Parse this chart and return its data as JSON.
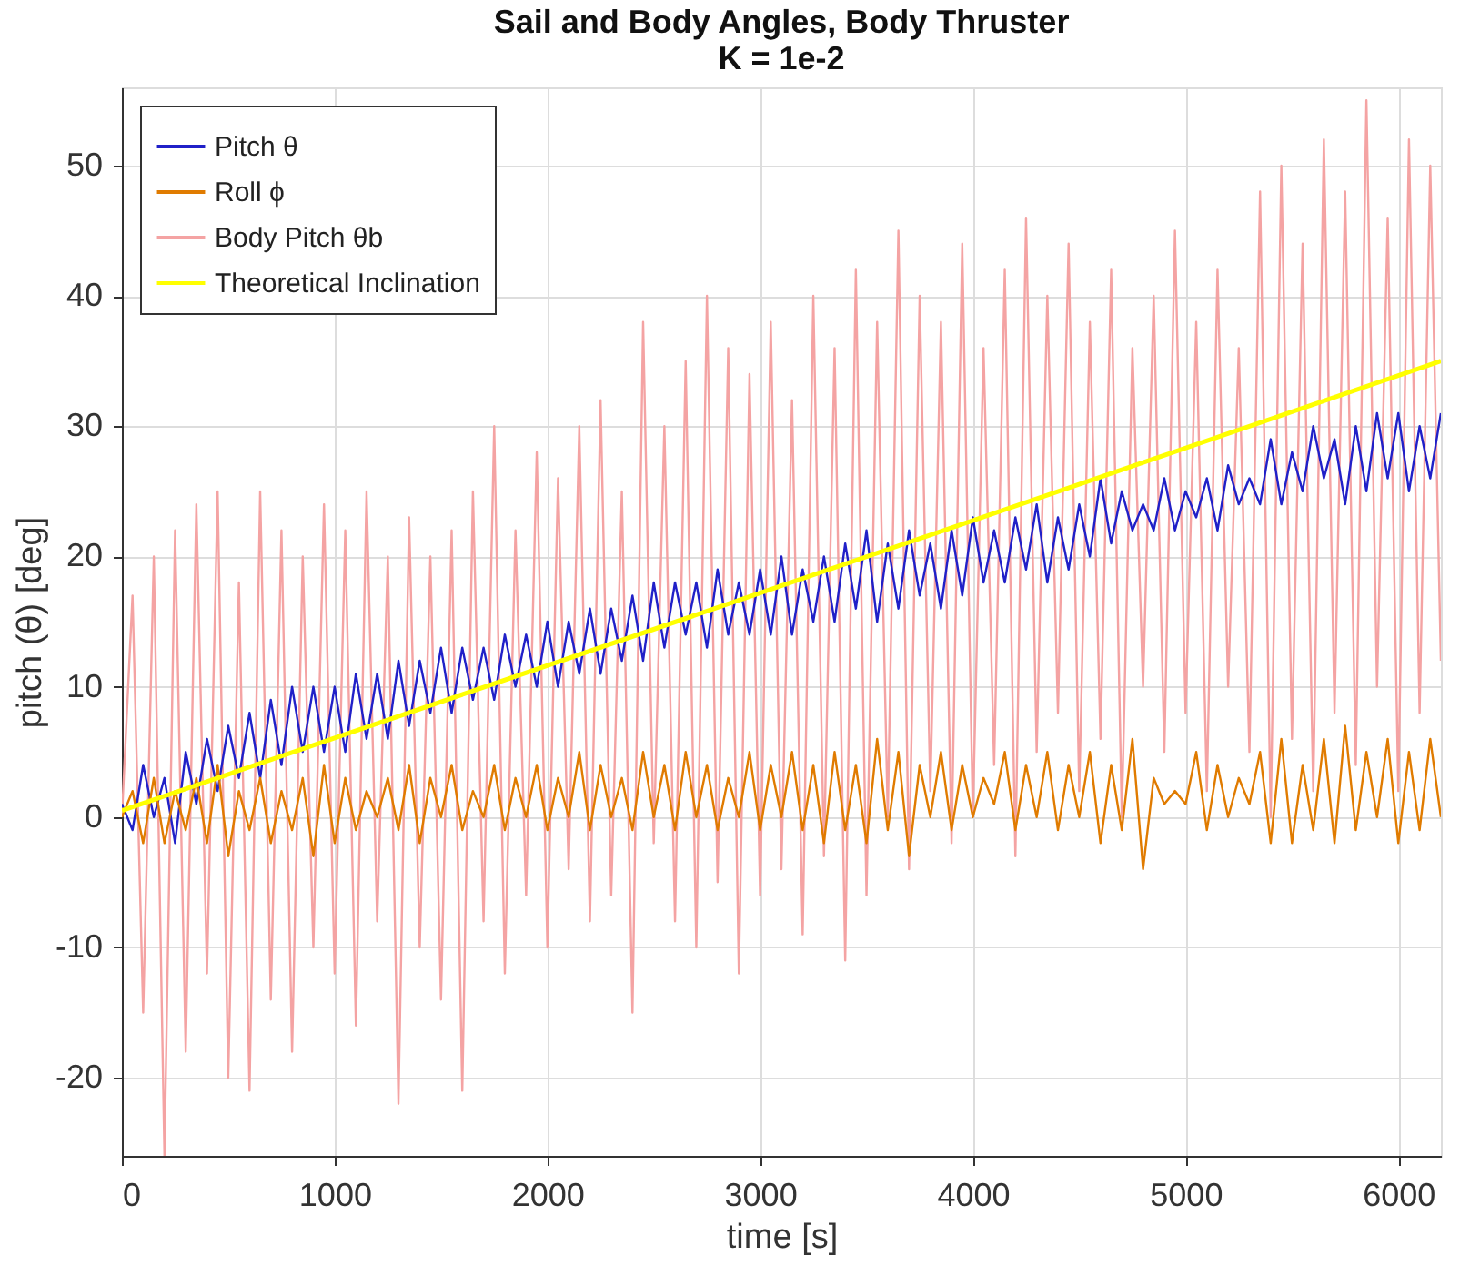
{
  "chart_data": {
    "type": "line",
    "title": "Sail and Body Angles, Body Thruster",
    "subtitle": "K = 1e-2",
    "xlabel": "time [s]",
    "ylabel": "pitch (θ) [deg]",
    "xlim": [
      0,
      6200
    ],
    "ylim": [
      -26,
      56
    ],
    "xticks": [
      0,
      1000,
      2000,
      3000,
      4000,
      5000,
      6000
    ],
    "yticks": [
      -20,
      -10,
      0,
      10,
      20,
      30,
      40,
      50
    ],
    "grid": true,
    "legend": "top left",
    "line_style": "solid",
    "marker": "none",
    "x": [
      0,
      50,
      100,
      150,
      200,
      250,
      300,
      350,
      400,
      450,
      500,
      550,
      600,
      650,
      700,
      750,
      800,
      850,
      900,
      950,
      1000,
      1050,
      1100,
      1150,
      1200,
      1250,
      1300,
      1350,
      1400,
      1450,
      1500,
      1550,
      1600,
      1650,
      1700,
      1750,
      1800,
      1850,
      1900,
      1950,
      2000,
      2050,
      2100,
      2150,
      2200,
      2250,
      2300,
      2350,
      2400,
      2450,
      2500,
      2550,
      2600,
      2650,
      2700,
      2750,
      2800,
      2850,
      2900,
      2950,
      3000,
      3050,
      3100,
      3150,
      3200,
      3250,
      3300,
      3350,
      3400,
      3450,
      3500,
      3550,
      3600,
      3650,
      3700,
      3750,
      3800,
      3850,
      3900,
      3950,
      4000,
      4050,
      4100,
      4150,
      4200,
      4250,
      4300,
      4350,
      4400,
      4450,
      4500,
      4550,
      4600,
      4650,
      4700,
      4750,
      4800,
      4850,
      4900,
      4950,
      5000,
      5050,
      5100,
      5150,
      5200,
      5250,
      5300,
      5350,
      5400,
      5450,
      5500,
      5550,
      5600,
      5650,
      5700,
      5750,
      5800,
      5850,
      5900,
      5950,
      6000,
      6050,
      6100,
      6150,
      6200
    ],
    "series": [
      {
        "name": "Pitch θ",
        "color": "#2020c8",
        "values": [
          1,
          -1,
          4,
          0,
          3,
          -2,
          5,
          1,
          6,
          2,
          7,
          3,
          8,
          3,
          9,
          4,
          10,
          5,
          10,
          5,
          10,
          5,
          11,
          6,
          11,
          6,
          12,
          7,
          12,
          8,
          13,
          8,
          13,
          9,
          13,
          9,
          14,
          10,
          14,
          10,
          15,
          10,
          15,
          11,
          16,
          11,
          16,
          12,
          17,
          12,
          18,
          13,
          18,
          14,
          18,
          13,
          19,
          14,
          18,
          14,
          19,
          14,
          20,
          14,
          19,
          15,
          20,
          15,
          21,
          16,
          22,
          15,
          21,
          16,
          22,
          17,
          21,
          16,
          22,
          17,
          23,
          18,
          22,
          18,
          23,
          19,
          24,
          18,
          23,
          19,
          24,
          20,
          26,
          21,
          25,
          22,
          24,
          22,
          26,
          22,
          25,
          23,
          26,
          22,
          27,
          24,
          26,
          24,
          29,
          24,
          28,
          25,
          30,
          26,
          29,
          24,
          30,
          25,
          31,
          26,
          31,
          25,
          30,
          26,
          31
        ]
      },
      {
        "name": "Roll ϕ",
        "color": "#e07b00",
        "values": [
          0,
          2,
          -2,
          3,
          -2,
          2,
          -1,
          3,
          -2,
          4,
          -3,
          2,
          -1,
          3,
          -2,
          2,
          -1,
          3,
          -3,
          4,
          -2,
          3,
          -1,
          2,
          0,
          3,
          -1,
          4,
          -2,
          3,
          0,
          4,
          -1,
          2,
          0,
          4,
          -1,
          3,
          0,
          4,
          -1,
          3,
          0,
          5,
          -1,
          4,
          0,
          3,
          -1,
          5,
          0,
          4,
          -1,
          5,
          0,
          4,
          -1,
          3,
          0,
          5,
          -1,
          4,
          0,
          5,
          -1,
          4,
          -2,
          5,
          -1,
          4,
          -2,
          6,
          -1,
          5,
          -3,
          4,
          0,
          5,
          -1,
          4,
          0,
          3,
          1,
          5,
          -1,
          4,
          0,
          5,
          -1,
          4,
          0,
          5,
          -2,
          4,
          -1,
          6,
          -4,
          3,
          1,
          2,
          1,
          5,
          -1,
          4,
          0,
          3,
          1,
          5,
          -2,
          6,
          -2,
          4,
          -1,
          6,
          -2,
          7,
          -1,
          5,
          0,
          6,
          -2,
          5,
          -1,
          6,
          0
        ]
      },
      {
        "name": "Body Pitch θb",
        "color": "#f4a3a3",
        "values": [
          0,
          17,
          -15,
          20,
          -26,
          22,
          -18,
          24,
          -12,
          25,
          -20,
          18,
          -21,
          25,
          -14,
          22,
          -18,
          20,
          -10,
          24,
          -12,
          22,
          -16,
          25,
          -8,
          20,
          -22,
          23,
          -10,
          20,
          -14,
          22,
          -21,
          25,
          -8,
          30,
          -12,
          22,
          -6,
          28,
          -10,
          26,
          -4,
          30,
          -8,
          32,
          -6,
          25,
          -15,
          38,
          -2,
          30,
          -8,
          35,
          -10,
          40,
          -5,
          36,
          -12,
          34,
          -6,
          38,
          -4,
          32,
          -9,
          40,
          -3,
          36,
          -11,
          42,
          -6,
          38,
          0,
          45,
          -4,
          40,
          2,
          38,
          -2,
          44,
          0,
          36,
          4,
          42,
          -3,
          46,
          5,
          40,
          8,
          44,
          2,
          38,
          6,
          42,
          0,
          36,
          10,
          40,
          5,
          45,
          8,
          38,
          2,
          42,
          10,
          36,
          5,
          48,
          0,
          50,
          6,
          44,
          2,
          52,
          8,
          48,
          4,
          55,
          10,
          46,
          2,
          52,
          8,
          50,
          12
        ]
      },
      {
        "name": "Theoretical Inclination",
        "color": "#ffff00",
        "x": [
          0,
          6200
        ],
        "values": [
          0.5,
          35
        ]
      }
    ]
  }
}
